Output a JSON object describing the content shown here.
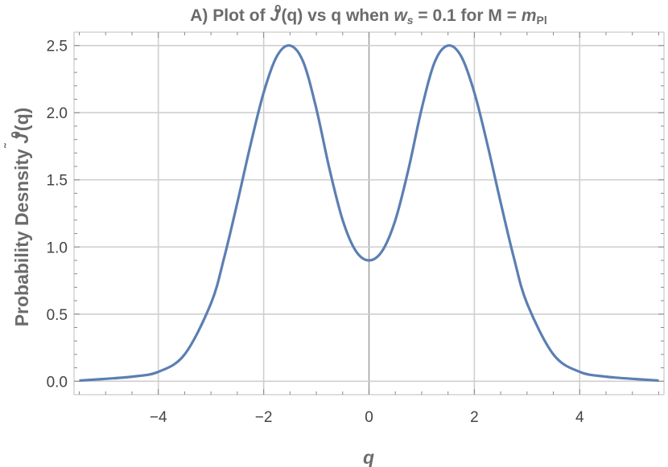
{
  "chart_data": {
    "type": "line",
    "title": {
      "prefix": "A) Plot of ",
      "func": "J",
      "func_accent": "̃",
      "func_sup": "0",
      "middle": "(q) vs q when ",
      "var": "w",
      "var_sub": "s",
      "value_part": " = 0.1 for M = ",
      "mass": "m",
      "mass_sub": "Pl"
    },
    "xlabel": "q",
    "ylabel": {
      "text": "Probability  Desnsity ",
      "func": "J",
      "func_accent": "̃",
      "func_sup": "0",
      "suffix": "(q)"
    },
    "xlim": [
      -5.6,
      5.6
    ],
    "ylim": [
      -0.1,
      2.6
    ],
    "x_ticks": [
      -4,
      -2,
      0,
      2,
      4
    ],
    "x_tick_labels": [
      "−4",
      "−2",
      "0",
      "2",
      "4"
    ],
    "y_ticks": [
      0.0,
      0.5,
      1.0,
      1.5,
      2.0,
      2.5
    ],
    "y_tick_labels": [
      "0.0",
      "0.5",
      "1.0",
      "1.5",
      "2.0",
      "2.5"
    ],
    "grid": true,
    "series": [
      {
        "color": "#5b7fb3",
        "x": [
          -5.5,
          -5.0,
          -4.5,
          -4.0,
          -3.5,
          -3.0,
          -2.75,
          -2.5,
          -2.25,
          -2.0,
          -1.75,
          -1.5,
          -1.25,
          -1.0,
          -0.75,
          -0.5,
          -0.25,
          0.0,
          0.25,
          0.5,
          0.75,
          1.0,
          1.25,
          1.5,
          1.75,
          2.0,
          2.25,
          2.5,
          2.75,
          3.0,
          3.5,
          4.0,
          4.5,
          5.0,
          5.5
        ],
        "y": [
          0.005,
          0.018,
          0.034,
          0.07,
          0.2,
          0.58,
          0.92,
          1.33,
          1.76,
          2.15,
          2.42,
          2.5,
          2.38,
          2.03,
          1.58,
          1.2,
          0.97,
          0.9,
          0.97,
          1.2,
          1.58,
          2.03,
          2.38,
          2.5,
          2.42,
          2.15,
          1.76,
          1.33,
          0.92,
          0.58,
          0.2,
          0.07,
          0.034,
          0.018,
          0.005
        ]
      }
    ]
  }
}
